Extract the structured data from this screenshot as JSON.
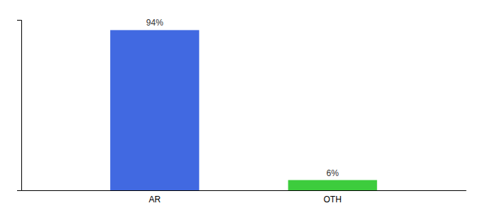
{
  "chart_data": {
    "type": "bar",
    "categories": [
      "AR",
      "OTH"
    ],
    "values": [
      94,
      6
    ],
    "value_labels": [
      "94%",
      "6%"
    ],
    "colors": [
      "#4169e1",
      "#3dcc3d"
    ],
    "ylim": [
      0,
      100
    ],
    "data_labels": true,
    "tick_labels": "x"
  }
}
